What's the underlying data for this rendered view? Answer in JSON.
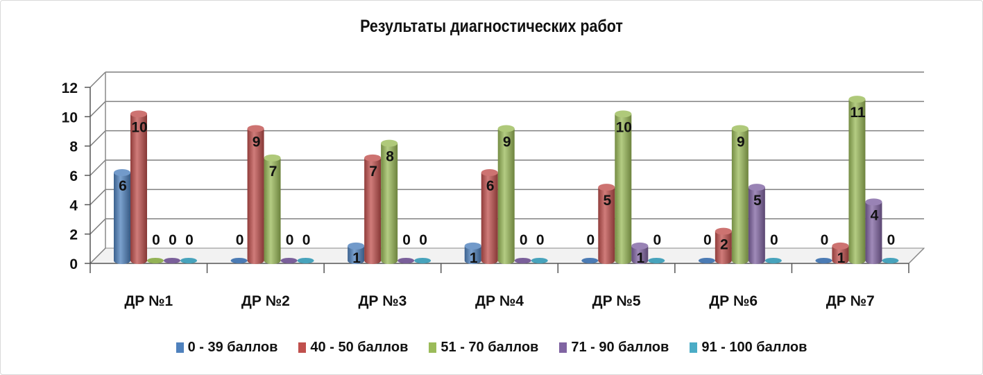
{
  "chart_data": {
    "type": "bar",
    "title": "Результаты диагностических работ",
    "categories": [
      "ДР №1",
      "ДР №2",
      "ДР №3",
      "ДР №4",
      "ДР №5",
      "ДР №6",
      "ДР №7"
    ],
    "series": [
      {
        "name": "0 - 39 баллов",
        "color": "#4f81bd",
        "values": [
          6,
          0,
          1,
          1,
          0,
          0,
          0
        ]
      },
      {
        "name": "40 - 50 баллов",
        "color": "#c0504d",
        "values": [
          10,
          9,
          7,
          6,
          5,
          2,
          1
        ]
      },
      {
        "name": "51 - 70 баллов",
        "color": "#9bbb59",
        "values": [
          0,
          7,
          8,
          9,
          10,
          9,
          11
        ]
      },
      {
        "name": "71 - 90 баллов",
        "color": "#8064a2",
        "values": [
          0,
          0,
          0,
          0,
          1,
          5,
          4
        ]
      },
      {
        "name": "91 - 100 баллов",
        "color": "#4bacc6",
        "values": [
          0,
          0,
          0,
          0,
          0,
          0,
          0
        ]
      }
    ],
    "yticks": [
      0,
      2,
      4,
      6,
      8,
      10,
      12
    ],
    "ylim": [
      0,
      12
    ],
    "xlabel": "",
    "ylabel": "",
    "grid": true,
    "legend_position": "bottom"
  }
}
